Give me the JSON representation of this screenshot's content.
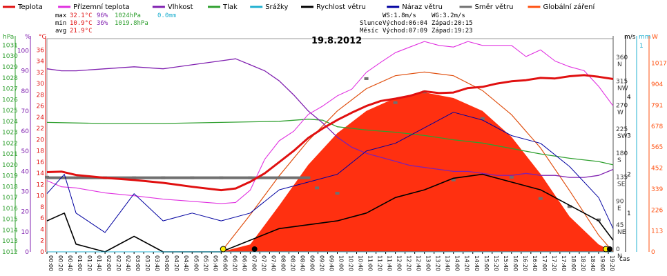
{
  "legend": [
    {
      "label": "Teplota",
      "color": "#e01010"
    },
    {
      "label": "Přízemní teplota",
      "color": "#e030e0"
    },
    {
      "label": "Vlhkost",
      "color": "#8020b0"
    },
    {
      "label": "Tlak",
      "color": "#30a030"
    },
    {
      "label": "Srážky",
      "color": "#20b0d0"
    },
    {
      "label": "Rychlost větru",
      "color": "#000000"
    },
    {
      "label": "Náraz větru",
      "color": "#0000a0"
    },
    {
      "label": "Směr větru",
      "color": "#707070"
    },
    {
      "label": "Globální záření",
      "color": "#ff5010"
    }
  ],
  "stats": {
    "max": {
      "label": "max",
      "temp": "32.1°C",
      "hum": "96%",
      "press": "1024hPa",
      "rain": "0.0mm"
    },
    "min": {
      "label": "min",
      "temp": "10.9°C",
      "hum": "36%",
      "press": "1019.8hPa"
    },
    "avg": {
      "label": "avg",
      "temp": "21.9°C"
    }
  },
  "wind_info": {
    "ws": "WS:1.8m/s",
    "wg": "WG:3.2m/s"
  },
  "sun_info": {
    "label": "Slunce",
    "rise": "Východ:06:04",
    "set": "Západ:20:15"
  },
  "moon_info": {
    "label": "Měsíc",
    "rise": "Východ:07:09",
    "set": "Západ:19:23"
  },
  "axis_units": {
    "press": "hPa",
    "hum": "%",
    "temp": "°C",
    "wind": "m/s",
    "rain": "mm",
    "rad": "W",
    "time": "čas"
  },
  "axes": {
    "press_ticks": [
      "1012",
      "1013",
      "1014",
      "1015",
      "1016",
      "1017",
      "1018",
      "1019",
      "1020",
      "1021",
      "1022",
      "1023",
      "1024",
      "1025",
      "1026",
      "1027",
      "1028",
      "1029",
      "1030",
      "1031"
    ],
    "hum_ticks": [
      "0",
      "10",
      "20",
      "30",
      "40",
      "50",
      "60",
      "70",
      "80",
      "90",
      "100"
    ],
    "temp_ticks": [
      "0",
      "2",
      "4",
      "6",
      "8",
      "10",
      "12",
      "14",
      "16",
      "18",
      "20",
      "22",
      "24",
      "26",
      "28",
      "30",
      "32",
      "34",
      "36"
    ],
    "dir_ticks": [
      {
        "deg": "0",
        "card": "N"
      },
      {
        "deg": "45",
        "card": "NE"
      },
      {
        "deg": "90",
        "card": "E"
      },
      {
        "deg": "135",
        "card": "SE"
      },
      {
        "deg": "180",
        "card": "S"
      },
      {
        "deg": "225",
        "card": "SW"
      },
      {
        "deg": "270",
        "card": "W"
      },
      {
        "deg": "315",
        "card": "NW"
      },
      {
        "deg": "360",
        "card": "N"
      }
    ],
    "wind_ticks": [
      "1",
      "2",
      "3",
      "4"
    ],
    "rain_tick": "1",
    "rad_ticks": [
      "0",
      "113",
      "226",
      "339",
      "452",
      "565",
      "678",
      "791",
      "904",
      "1017"
    ]
  },
  "chart_data": {
    "type": "line",
    "title": "19.8.2012",
    "x_ticks": [
      "00:00",
      "00:20",
      "00:40",
      "01:00",
      "01:20",
      "01:40",
      "02:00",
      "02:20",
      "02:40",
      "03:00",
      "03:20",
      "03:40",
      "04:00",
      "04:20",
      "04:40",
      "05:00",
      "05:20",
      "05:40",
      "06:00",
      "06:20",
      "06:40",
      "07:00",
      "07:20",
      "07:40",
      "08:00",
      "08:20",
      "08:40",
      "09:00",
      "09:20",
      "09:40",
      "10:00",
      "10:20",
      "10:40",
      "11:00",
      "11:20",
      "11:40",
      "12:00",
      "12:20",
      "12:40",
      "13:00",
      "13:20",
      "13:40",
      "14:00",
      "14:20",
      "14:40",
      "15:00",
      "15:20",
      "15:40",
      "16:00",
      "16:20",
      "16:40",
      "17:00",
      "17:20",
      "17:40",
      "18:00",
      "18:20",
      "18:40",
      "19:00",
      "19:20"
    ],
    "x_range_hours": [
      0,
      19.5
    ],
    "series": [
      {
        "name": "Teplota",
        "unit": "°C",
        "points": [
          [
            0,
            14.2
          ],
          [
            0.5,
            14.3
          ],
          [
            1,
            13.7
          ],
          [
            2,
            13.2
          ],
          [
            3,
            12.8
          ],
          [
            4,
            12.3
          ],
          [
            5,
            11.6
          ],
          [
            6,
            11.0
          ],
          [
            6.5,
            11.3
          ],
          [
            7,
            12.5
          ],
          [
            7.5,
            14.0
          ],
          [
            8,
            16.0
          ],
          [
            8.5,
            18.0
          ],
          [
            9,
            20.3
          ],
          [
            9.5,
            22.0
          ],
          [
            10,
            23.5
          ],
          [
            10.5,
            24.8
          ],
          [
            11,
            26.0
          ],
          [
            11.5,
            26.9
          ],
          [
            12,
            27.3
          ],
          [
            12.5,
            27.8
          ],
          [
            13,
            28.6
          ],
          [
            13.5,
            28.3
          ],
          [
            14,
            28.4
          ],
          [
            14.5,
            29.2
          ],
          [
            15,
            29.4
          ],
          [
            15.5,
            30.0
          ],
          [
            16,
            30.4
          ],
          [
            16.5,
            30.6
          ],
          [
            17,
            31.0
          ],
          [
            17.5,
            30.9
          ],
          [
            18,
            31.3
          ],
          [
            18.5,
            31.5
          ],
          [
            19,
            31.2
          ],
          [
            19.5,
            30.8
          ]
        ]
      },
      {
        "name": "Přízemní teplota",
        "unit": "°C",
        "points": [
          [
            0,
            12.7
          ],
          [
            0.5,
            11.6
          ],
          [
            1,
            11.4
          ],
          [
            2,
            10.5
          ],
          [
            3,
            10.0
          ],
          [
            4,
            9.4
          ],
          [
            5,
            9.0
          ],
          [
            6,
            8.6
          ],
          [
            6.5,
            8.8
          ],
          [
            7,
            11.0
          ],
          [
            7.5,
            16.5
          ],
          [
            8,
            19.8
          ],
          [
            8.5,
            21.5
          ],
          [
            9,
            24.5
          ],
          [
            9.5,
            26.0
          ],
          [
            10,
            27.8
          ],
          [
            10.5,
            29.0
          ],
          [
            11,
            32.0
          ],
          [
            11.5,
            33.8
          ],
          [
            12,
            35.5
          ],
          [
            12.5,
            36.5
          ],
          [
            13,
            37.5
          ],
          [
            13.5,
            36.8
          ],
          [
            14,
            36.5
          ],
          [
            14.5,
            37.5
          ],
          [
            15,
            36.8
          ],
          [
            15.5,
            36.8
          ],
          [
            16,
            36.8
          ],
          [
            16.5,
            34.8
          ],
          [
            17,
            36.0
          ],
          [
            17.5,
            34.0
          ],
          [
            18,
            33.0
          ],
          [
            18.5,
            32.3
          ],
          [
            19,
            29.5
          ],
          [
            19.5,
            26.0
          ]
        ]
      },
      {
        "name": "Vlhkost",
        "unit": "%",
        "points": [
          [
            0,
            91
          ],
          [
            0.5,
            90
          ],
          [
            1,
            90
          ],
          [
            2,
            91
          ],
          [
            3,
            92
          ],
          [
            4,
            91
          ],
          [
            5,
            93
          ],
          [
            6,
            95
          ],
          [
            6.5,
            96
          ],
          [
            7,
            93
          ],
          [
            7.5,
            90
          ],
          [
            8,
            85
          ],
          [
            8.5,
            78
          ],
          [
            9,
            70
          ],
          [
            9.5,
            64
          ],
          [
            10,
            57
          ],
          [
            10.5,
            52
          ],
          [
            11,
            49
          ],
          [
            11.5,
            47
          ],
          [
            12,
            45
          ],
          [
            12.5,
            43
          ],
          [
            13,
            42
          ],
          [
            13.5,
            41
          ],
          [
            14,
            40
          ],
          [
            14.5,
            40
          ],
          [
            15,
            39
          ],
          [
            15.5,
            38
          ],
          [
            16,
            38
          ],
          [
            16.5,
            39
          ],
          [
            17,
            38
          ],
          [
            17.5,
            38
          ],
          [
            18,
            37
          ],
          [
            18.5,
            37
          ],
          [
            19,
            38
          ],
          [
            19.5,
            41
          ]
        ]
      },
      {
        "name": "Tlak",
        "unit": "hPa",
        "points": [
          [
            0,
            1023.9
          ],
          [
            2,
            1023.8
          ],
          [
            4,
            1023.8
          ],
          [
            6,
            1023.9
          ],
          [
            8,
            1024.0
          ],
          [
            9,
            1024.2
          ],
          [
            9.5,
            1024.1
          ],
          [
            10,
            1023.5
          ],
          [
            11,
            1023.2
          ],
          [
            12,
            1023.0
          ],
          [
            13,
            1022.7
          ],
          [
            14,
            1022.3
          ],
          [
            15,
            1022.0
          ],
          [
            16,
            1021.5
          ],
          [
            17,
            1021.0
          ],
          [
            18,
            1020.6
          ],
          [
            19,
            1020.3
          ],
          [
            19.5,
            1020.0
          ]
        ]
      },
      {
        "name": "Srážky",
        "unit": "mm",
        "points": [
          [
            0,
            0
          ],
          [
            19.5,
            0
          ]
        ]
      },
      {
        "name": "Rychlost větru",
        "unit": "m/s",
        "points": [
          [
            0,
            0.8
          ],
          [
            0.6,
            1.0
          ],
          [
            1,
            0.2
          ],
          [
            2,
            0
          ],
          [
            3,
            0.4
          ],
          [
            4,
            0
          ],
          [
            5,
            0
          ],
          [
            6,
            0
          ],
          [
            7,
            0.3
          ],
          [
            8,
            0.6
          ],
          [
            9,
            0.7
          ],
          [
            10,
            0.8
          ],
          [
            11,
            1.0
          ],
          [
            12,
            1.4
          ],
          [
            13,
            1.6
          ],
          [
            14,
            1.9
          ],
          [
            15,
            2.0
          ],
          [
            16,
            1.8
          ],
          [
            17,
            1.6
          ],
          [
            18,
            1.2
          ],
          [
            19,
            0.8
          ],
          [
            19.5,
            0.3
          ]
        ]
      },
      {
        "name": "Náraz větru",
        "unit": "m/s",
        "points": [
          [
            0,
            1.5
          ],
          [
            0.6,
            2.0
          ],
          [
            1,
            1.0
          ],
          [
            2,
            0.5
          ],
          [
            3,
            1.5
          ],
          [
            4,
            0.8
          ],
          [
            5,
            1.0
          ],
          [
            6,
            0.8
          ],
          [
            7,
            1.0
          ],
          [
            8,
            1.6
          ],
          [
            9,
            1.8
          ],
          [
            10,
            2.0
          ],
          [
            11,
            2.6
          ],
          [
            12,
            2.8
          ],
          [
            13,
            3.2
          ],
          [
            14,
            3.6
          ],
          [
            15,
            3.4
          ],
          [
            16,
            3.0
          ],
          [
            17,
            2.8
          ],
          [
            18,
            2.2
          ],
          [
            19,
            1.4
          ],
          [
            19.5,
            0.6
          ]
        ]
      },
      {
        "name": "Směr větru",
        "unit": "°",
        "points": [
          [
            0,
            140
          ],
          [
            1,
            139
          ],
          [
            2,
            139
          ],
          [
            3,
            139
          ],
          [
            4,
            139
          ],
          [
            5,
            139
          ],
          [
            6,
            139
          ],
          [
            7,
            139
          ],
          [
            8,
            139
          ],
          [
            9,
            139
          ],
          [
            9.3,
            120
          ],
          [
            10,
            110
          ],
          [
            11,
            325
          ],
          [
            12,
            280
          ],
          [
            13,
            300
          ],
          [
            14,
            135
          ],
          [
            15,
            250
          ],
          [
            16,
            140
          ],
          [
            17,
            100
          ],
          [
            18,
            85
          ],
          [
            19,
            60
          ]
        ]
      },
      {
        "name": "Globální záření",
        "unit": "W/m²",
        "points": [
          [
            0,
            0
          ],
          [
            6.0,
            0
          ],
          [
            7,
            40
          ],
          [
            8,
            250
          ],
          [
            9,
            470
          ],
          [
            10,
            640
          ],
          [
            11,
            760
          ],
          [
            12,
            830
          ],
          [
            13,
            860
          ],
          [
            14,
            830
          ],
          [
            15,
            760
          ],
          [
            16,
            620
          ],
          [
            17,
            420
          ],
          [
            18,
            190
          ],
          [
            19,
            40
          ],
          [
            19.5,
            0
          ]
        ]
      },
      {
        "name": "",
        "unit": "W/m²",
        "points": [
          [
            6.0,
            0
          ],
          [
            7,
            200
          ],
          [
            8,
            410
          ],
          [
            9,
            600
          ],
          [
            10,
            760
          ],
          [
            11,
            880
          ],
          [
            12,
            950
          ],
          [
            13,
            970
          ],
          [
            14,
            950
          ],
          [
            15,
            870
          ],
          [
            16,
            740
          ],
          [
            17,
            560
          ],
          [
            18,
            330
          ],
          [
            19,
            90
          ],
          [
            19.5,
            0
          ]
        ]
      }
    ]
  }
}
